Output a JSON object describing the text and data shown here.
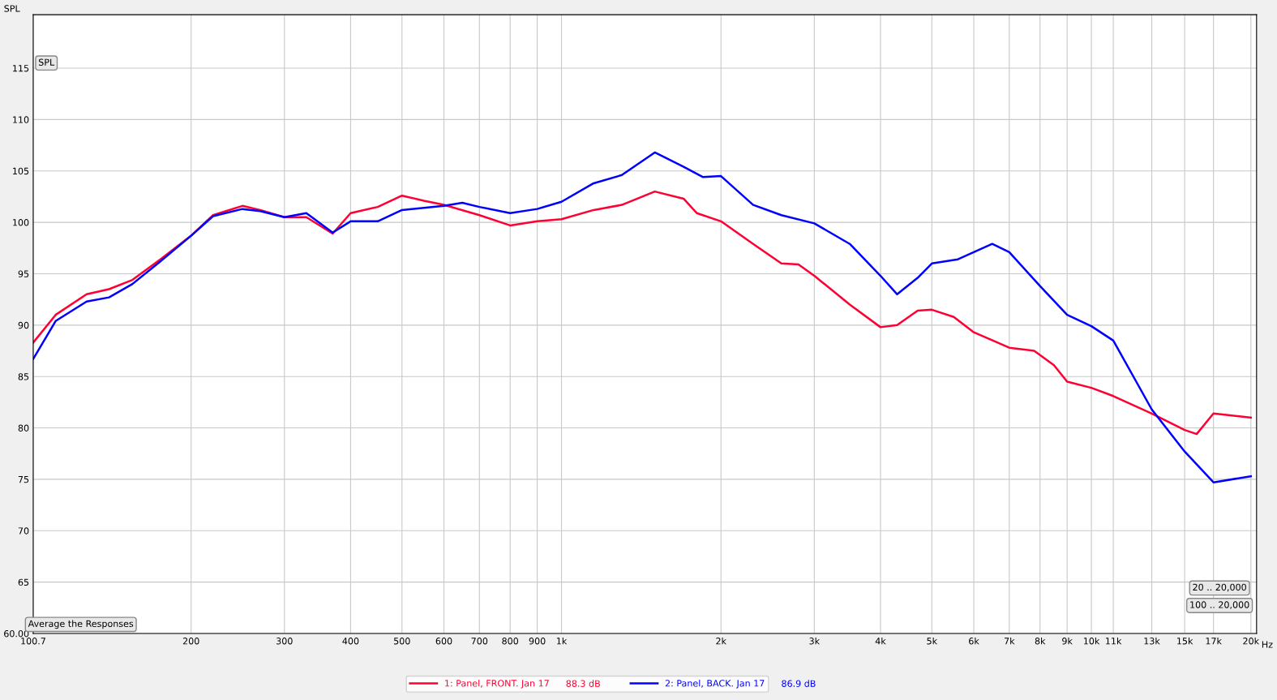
{
  "chart_data": {
    "type": "line",
    "ylabel": "SPL",
    "log": "x",
    "grid": true,
    "legend": "bottom",
    "line_style": "solid",
    "marker": "none",
    "xlim": [
      100.7,
      20500
    ],
    "ylim": [
      60,
      120.2
    ],
    "xticks": [
      {
        "value": 100.7,
        "label": "100.7"
      },
      200,
      300,
      400,
      500,
      600,
      700,
      800,
      900,
      {
        "value": 1000,
        "label": "1k"
      },
      {
        "value": 2000,
        "label": "2k"
      },
      {
        "value": 3000,
        "label": "3k"
      },
      {
        "value": 4000,
        "label": "4k"
      },
      {
        "value": 5000,
        "label": "5k"
      },
      {
        "value": 6000,
        "label": "6k"
      },
      {
        "value": 7000,
        "label": "7k"
      },
      {
        "value": 8000,
        "label": "8k"
      },
      {
        "value": 9000,
        "label": "9k"
      },
      {
        "value": 10000,
        "label": "10k"
      },
      {
        "value": 11000,
        "label": "11k"
      },
      {
        "value": 13000,
        "label": "13k"
      },
      {
        "value": 15000,
        "label": "15k"
      },
      {
        "value": 17000,
        "label": "17k"
      },
      {
        "value": 20000,
        "label": "20k"
      }
    ],
    "xlabel": "Hz",
    "yticks": [
      {
        "value": 60,
        "label": "60.00"
      },
      65,
      70,
      75,
      80,
      85,
      90,
      95,
      100,
      105,
      110,
      115
    ],
    "series": [
      {
        "name": "1: Panel, FRONT. Jan 17",
        "color": "#ff0033",
        "x": [
          100.7,
          111,
          127,
          140,
          155,
          175,
          200,
          220,
          250,
          270,
          300,
          330,
          370,
          400,
          450,
          500,
          550,
          600,
          700,
          800,
          900,
          1000,
          1150,
          1300,
          1500,
          1700,
          1800,
          2000,
          2300,
          2600,
          2800,
          3000,
          3500,
          4000,
          4300,
          4700,
          5000,
          5500,
          6000,
          7000,
          7800,
          8500,
          9000,
          10000,
          11000,
          13000,
          15000,
          15800,
          17000,
          20000
        ],
        "values": [
          88.3,
          91.0,
          93.0,
          93.5,
          94.4,
          96.4,
          98.7,
          100.7,
          101.6,
          101.2,
          100.5,
          100.5,
          98.9,
          100.9,
          101.5,
          102.6,
          102.1,
          101.7,
          100.7,
          99.7,
          100.1,
          100.3,
          101.2,
          101.7,
          103.0,
          102.3,
          100.9,
          100.1,
          97.9,
          96.0,
          95.9,
          94.8,
          92.0,
          89.8,
          90.0,
          91.4,
          91.5,
          90.8,
          89.3,
          87.8,
          87.5,
          86.1,
          84.5,
          83.9,
          83.1,
          81.4,
          79.8,
          79.4,
          81.4,
          81.0
        ]
      },
      {
        "name": "2: Panel, BACK. Jan 17",
        "color": "#0000ff",
        "x": [
          100.7,
          111,
          127,
          140,
          155,
          175,
          200,
          220,
          250,
          270,
          300,
          330,
          370,
          400,
          450,
          500,
          550,
          600,
          650,
          700,
          800,
          900,
          1000,
          1150,
          1300,
          1500,
          1700,
          1850,
          2000,
          2300,
          2600,
          3000,
          3500,
          4000,
          4300,
          4700,
          5000,
          5600,
          6500,
          7000,
          8000,
          9000,
          10000,
          11000,
          13000,
          15000,
          17000,
          20000
        ],
        "values": [
          86.7,
          90.4,
          92.3,
          92.7,
          94.0,
          96.2,
          98.7,
          100.6,
          101.3,
          101.1,
          100.5,
          100.9,
          99.0,
          100.1,
          100.1,
          101.2,
          101.4,
          101.6,
          101.9,
          101.5,
          100.9,
          101.3,
          102.0,
          103.8,
          104.6,
          106.8,
          105.4,
          104.4,
          104.5,
          101.7,
          100.7,
          99.9,
          97.9,
          94.8,
          93.0,
          94.6,
          96.0,
          96.4,
          97.9,
          97.1,
          93.8,
          91.0,
          89.9,
          88.5,
          81.8,
          77.7,
          74.7,
          75.3
        ]
      }
    ],
    "annotations": [
      "88.3 dB",
      "86.9 dB",
      "SPL",
      "Average the Responses",
      "20 .. 20,000",
      "100 .. 20,000"
    ]
  }
}
